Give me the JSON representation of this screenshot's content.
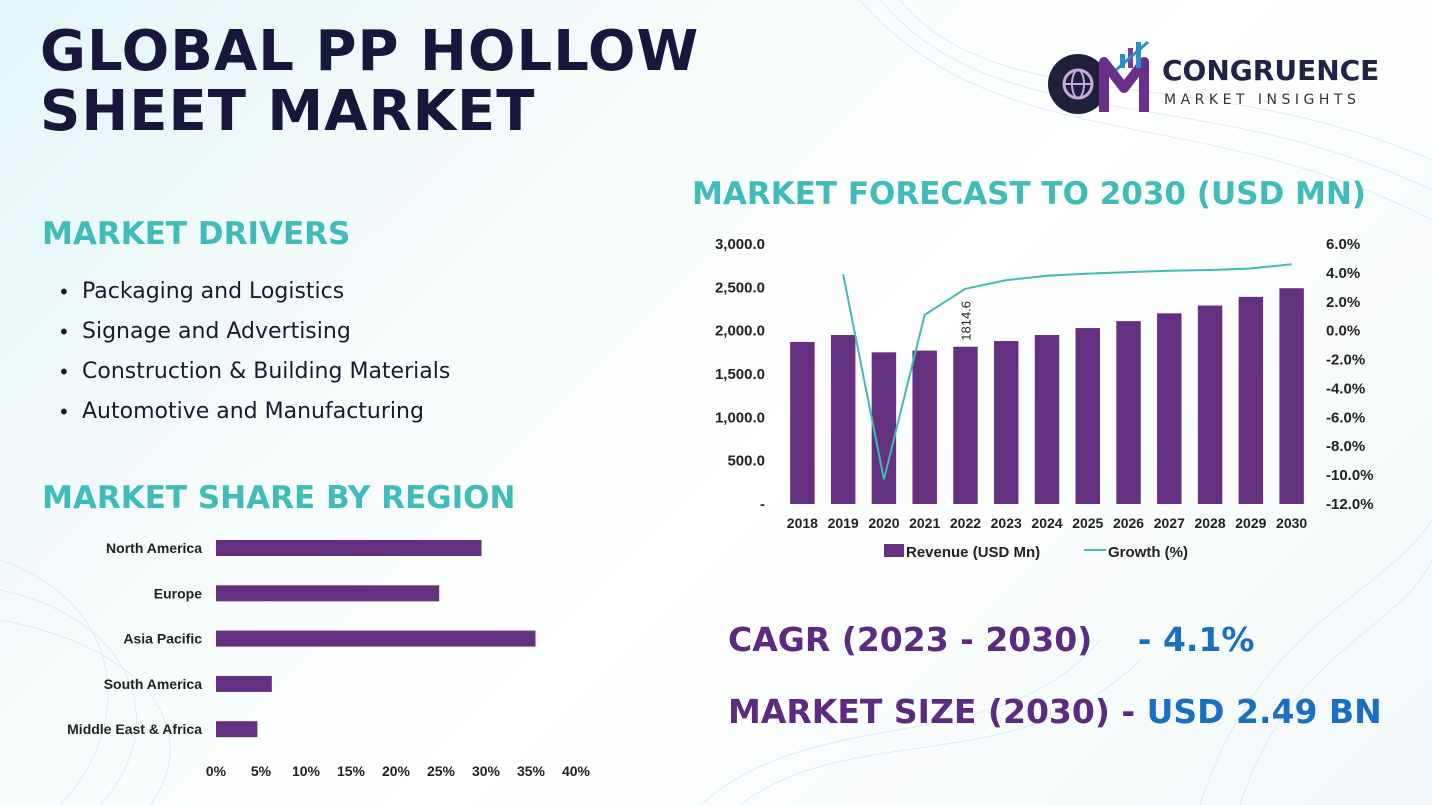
{
  "title": "GLOBAL PP HOLLOW SHEET MARKET",
  "logo": {
    "name": "CONGRUENCE",
    "tagline": "MARKET INSIGHTS",
    "monogram": "CM"
  },
  "drivers": {
    "heading": "MARKET DRIVERS",
    "items": [
      "Packaging and Logistics",
      "Signage and Advertising",
      "Construction & Building Materials",
      "Automotive and Manufacturing"
    ]
  },
  "region": {
    "heading": "MARKET SHARE BY REGION"
  },
  "forecast": {
    "heading": "MARKET FORECAST TO 2030 (USD MN)"
  },
  "stats": {
    "cagr_label": "CAGR (2023 - 2030)",
    "cagr_value": "- 4.1%",
    "size_label": "MARKET SIZE (2030) -",
    "size_value": "USD 2.49 BN"
  },
  "colors": {
    "bar": "#65307f",
    "line": "#3fbcb8",
    "heading": "#3fbcb8",
    "stat_label": "#5a2b7e",
    "stat_value": "#1b6fc2"
  },
  "chart_data": [
    {
      "type": "bar",
      "orientation": "horizontal",
      "categories": [
        "North America",
        "Europe",
        "Asia Pacific",
        "South America",
        "Middle East & Africa"
      ],
      "values": [
        29.5,
        24.8,
        35.5,
        6.2,
        4.6
      ],
      "x_ticks": [
        "0%",
        "5%",
        "10%",
        "15%",
        "20%",
        "25%",
        "30%",
        "35%",
        "40%"
      ],
      "xlim": [
        0,
        40
      ]
    },
    {
      "type": "bar",
      "x": [
        "2018",
        "2019",
        "2020",
        "2021",
        "2022",
        "2023",
        "2024",
        "2025",
        "2026",
        "2027",
        "2028",
        "2029",
        "2030"
      ],
      "series": [
        {
          "name": "Revenue (USD Mn)",
          "type": "bar",
          "axis": "left",
          "values": [
            1870,
            1950,
            1750,
            1770,
            1814.6,
            1880,
            1950,
            2030,
            2110,
            2200,
            2290,
            2390,
            2490
          ]
        },
        {
          "name": "Growth (%)",
          "type": "line",
          "axis": "right",
          "values": [
            null,
            3.9,
            -10.3,
            1.1,
            2.9,
            3.5,
            3.8,
            3.95,
            4.05,
            4.15,
            4.2,
            4.3,
            4.6
          ]
        }
      ],
      "data_labels": [
        {
          "x": "2022",
          "text": "1814.6"
        }
      ],
      "y_left_ticks": [
        "-",
        "500.0",
        "1,000.0",
        "1,500.0",
        "2,000.0",
        "2,500.0",
        "3,000.0"
      ],
      "y_left_lim": [
        0,
        3000
      ],
      "y_right_ticks": [
        "6.0%",
        "4.0%",
        "2.0%",
        "0.0%",
        "-2.0%",
        "-4.0%",
        "-6.0%",
        "-8.0%",
        "-10.0%",
        "-12.0%"
      ],
      "y_right_lim": [
        -12,
        6
      ],
      "legend": "bottom"
    }
  ]
}
